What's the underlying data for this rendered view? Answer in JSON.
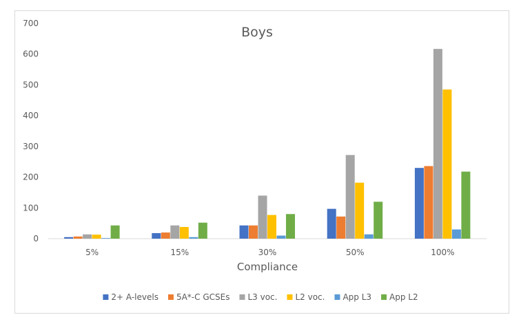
{
  "chart_data": {
    "type": "bar",
    "title": "Boys",
    "xlabel": "Compliance",
    "ylabel": "",
    "ylim": [
      0,
      700
    ],
    "yticks": [
      "0",
      "100",
      "200",
      "300",
      "400",
      "500",
      "600",
      "700"
    ],
    "categories": [
      "5%",
      "15%",
      "30%",
      "50%",
      "100%"
    ],
    "series": [
      {
        "name": "2+ A-levels",
        "color": "#4472c4",
        "values": [
          5,
          18,
          43,
          97,
          230
        ]
      },
      {
        "name": "5A*-C GCSEs",
        "color": "#ed7d31",
        "values": [
          7,
          20,
          43,
          72,
          236
        ]
      },
      {
        "name": "L3 voc.",
        "color": "#a5a5a5",
        "values": [
          14,
          43,
          140,
          272,
          617
        ]
      },
      {
        "name": "L2 voc.",
        "color": "#ffc000",
        "values": [
          13,
          38,
          77,
          182,
          485
        ]
      },
      {
        "name": "App L3",
        "color": "#5b9bd5",
        "values": [
          2,
          5,
          10,
          14,
          30
        ]
      },
      {
        "name": "App L2",
        "color": "#70ad47",
        "values": [
          43,
          52,
          80,
          120,
          218
        ]
      }
    ],
    "grid": false,
    "legend_position": "bottom"
  }
}
